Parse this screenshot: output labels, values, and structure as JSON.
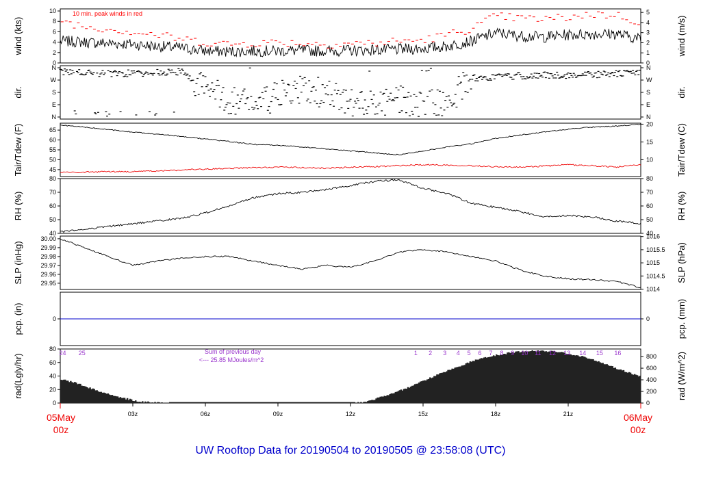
{
  "title": "UW Rooftop Data for 20190504  to  20190505 @ 23:58:08  (UTC)",
  "date_start": {
    "line1": "05May",
    "line2": "00z"
  },
  "date_end": {
    "line1": "06May",
    "line2": "00z"
  },
  "x_ticks": [
    "03z",
    "06z",
    "09z",
    "12z",
    "15z",
    "18z",
    "21z"
  ],
  "colors": {
    "peak": "#ff0000",
    "dew": "#ee0000",
    "precip": "#0000cc",
    "annot": "#9933cc",
    "title": "#0000cc"
  },
  "chart_data": [
    {
      "type": "line",
      "name": "wind",
      "ylabel_left": "wind (kts)",
      "ylabel_right": "wind (m/s)",
      "ylim": [
        0,
        10.4
      ],
      "yticks_left": [
        0,
        2,
        4,
        6,
        8,
        10
      ],
      "yticks_right": [
        0,
        1,
        2,
        3,
        4,
        5
      ],
      "annotation": "10 min. peak winds in red",
      "x_hours": [
        0,
        1,
        2,
        3,
        4,
        5,
        6,
        7,
        8,
        9,
        10,
        11,
        12,
        13,
        14,
        15,
        16,
        17,
        18,
        19,
        20,
        21,
        22,
        23,
        24
      ],
      "mean_kts": [
        4.2,
        4.0,
        3.8,
        3.6,
        3.2,
        2.9,
        2.3,
        2.2,
        2.3,
        2.3,
        2.4,
        2.3,
        2.4,
        2.5,
        2.6,
        2.8,
        3.2,
        4.2,
        5.8,
        5.2,
        5.0,
        5.4,
        5.6,
        5.6,
        4.6
      ],
      "peak_kts": [
        8.2,
        7.0,
        6.6,
        6.0,
        5.4,
        4.6,
        4.0,
        3.6,
        3.8,
        4.0,
        3.8,
        3.6,
        3.8,
        3.8,
        4.2,
        4.4,
        5.4,
        6.6,
        9.0,
        8.6,
        8.4,
        8.8,
        9.4,
        9.2,
        7.8
      ]
    },
    {
      "type": "scatter",
      "name": "direction",
      "ylabel_left": "dir.",
      "ylabel_right": "dir.",
      "yticks_left": [
        "N",
        "E",
        "S",
        "W",
        "N"
      ],
      "yticks_right": [
        "N",
        "E",
        "S",
        "W",
        "N"
      ],
      "ylim_deg": [
        0,
        360
      ],
      "x_hours": [
        0,
        1,
        2,
        3,
        4,
        5,
        6,
        7,
        8,
        9,
        10,
        11,
        12,
        13,
        14,
        15,
        16,
        17,
        18,
        19,
        20,
        21,
        22,
        23,
        24
      ],
      "dir_deg": [
        330,
        320,
        315,
        320,
        325,
        330,
        200,
        130,
        90,
        150,
        200,
        170,
        100,
        80,
        120,
        80,
        110,
        285,
        290,
        300,
        305,
        305,
        310,
        315,
        330
      ]
    },
    {
      "type": "line",
      "name": "temperature",
      "ylabel_left": "Tair/Tdew (F)",
      "ylabel_right": "Tair/Tdew (C)",
      "ylim": [
        41.5,
        68.5
      ],
      "yticks_left": [
        45,
        50,
        55,
        60,
        65
      ],
      "yticks_right": [
        10,
        15,
        20
      ],
      "x_hours": [
        0,
        1,
        2,
        3,
        4,
        5,
        6,
        7,
        8,
        9,
        10,
        11,
        12,
        13,
        14,
        15,
        16,
        17,
        18,
        19,
        20,
        21,
        22,
        23,
        24
      ],
      "tair_f": [
        67.5,
        66.5,
        65.2,
        64.0,
        63.0,
        61.8,
        60.5,
        59.2,
        57.8,
        57.3,
        56.5,
        55.5,
        54.5,
        53.5,
        52.5,
        54.5,
        56.5,
        58.0,
        60.8,
        62.5,
        64.0,
        65.5,
        66.5,
        67.0,
        68.0
      ],
      "tdew_f": [
        43.5,
        43.8,
        44.0,
        44.0,
        44.3,
        44.8,
        45.2,
        45.6,
        46.0,
        46.3,
        46.0,
        45.7,
        46.2,
        46.5,
        47.0,
        47.5,
        47.3,
        47.0,
        46.5,
        46.2,
        46.8,
        47.5,
        47.0,
        46.3,
        47.5
      ]
    },
    {
      "type": "line",
      "name": "humidity",
      "ylabel_left": "RH (%)",
      "ylabel_right": "RH (%)",
      "ylim": [
        40,
        80
      ],
      "yticks_left": [
        40,
        50,
        60,
        70,
        80
      ],
      "yticks_right": [
        40,
        50,
        60,
        70,
        80
      ],
      "x_hours": [
        0,
        1,
        2,
        3,
        4,
        5,
        6,
        7,
        8,
        9,
        10,
        11,
        12,
        13,
        14,
        15,
        16,
        17,
        18,
        19,
        20,
        21,
        22,
        23,
        24
      ],
      "rh_pct": [
        41,
        43,
        45,
        47,
        49,
        51,
        55,
        60,
        66,
        69,
        70,
        72,
        75,
        78,
        79,
        73,
        69,
        62,
        59,
        56,
        52,
        53,
        52,
        49,
        47
      ]
    },
    {
      "type": "line",
      "name": "pressure",
      "ylabel_left": "SLP (inHg)",
      "ylabel_right": "SLP (hPa)",
      "ylim": [
        29.943,
        30.003
      ],
      "yticks_left": [
        29.95,
        29.96,
        29.97,
        29.98,
        29.99,
        30.0
      ],
      "yticks_left_labels": [
        "29.95",
        "29.96",
        "29.97",
        "29.98",
        "29.99",
        "30.00"
      ],
      "yticks_right": [
        1014,
        1014.5,
        1015,
        1015.5,
        1016
      ],
      "x_hours": [
        0,
        1,
        2,
        3,
        4,
        5,
        6,
        7,
        8,
        9,
        10,
        11,
        12,
        13,
        14,
        15,
        16,
        17,
        18,
        19,
        20,
        21,
        22,
        23,
        24
      ],
      "slp_inhg": [
        30.0,
        29.99,
        29.98,
        29.97,
        29.975,
        29.978,
        29.98,
        29.98,
        29.975,
        29.97,
        29.966,
        29.97,
        29.968,
        29.975,
        29.985,
        29.988,
        29.985,
        29.98,
        29.975,
        29.965,
        29.958,
        29.955,
        29.954,
        29.952,
        29.945
      ]
    },
    {
      "type": "line",
      "name": "precipitation",
      "ylabel_left": "pcp. (in)",
      "ylabel_right": "pcp. (mm)",
      "ylim": [
        -1,
        1
      ],
      "yticks_left": [
        0
      ],
      "yticks_right": [
        0
      ],
      "x_hours": [
        0,
        24
      ],
      "pcp_in": [
        0,
        0
      ]
    },
    {
      "type": "area",
      "name": "radiation",
      "ylabel_left": "rad(Lgly/hr)",
      "ylabel_right": "rad (W/m^2)",
      "ylim": [
        0,
        80
      ],
      "yticks_left": [
        0,
        20,
        40,
        60,
        80
      ],
      "yticks_right": [
        0,
        200,
        400,
        600,
        800
      ],
      "annotation_line1": "Sum of previous day",
      "annotation_line2": "<--- 25.85 MJoules/m^2",
      "hour_labels": [
        {
          "x": 0.1,
          "text": "24"
        },
        {
          "x": 0.9,
          "text": "25"
        },
        {
          "x": 14.7,
          "text": "1"
        },
        {
          "x": 15.3,
          "text": "2"
        },
        {
          "x": 15.9,
          "text": "3"
        },
        {
          "x": 16.45,
          "text": "4"
        },
        {
          "x": 16.9,
          "text": "5"
        },
        {
          "x": 17.35,
          "text": "6"
        },
        {
          "x": 17.8,
          "text": "7"
        },
        {
          "x": 18.25,
          "text": "8"
        },
        {
          "x": 18.7,
          "text": "9"
        },
        {
          "x": 19.2,
          "text": "10"
        },
        {
          "x": 19.75,
          "text": "11"
        },
        {
          "x": 20.35,
          "text": "12"
        },
        {
          "x": 20.95,
          "text": "13"
        },
        {
          "x": 21.6,
          "text": "14"
        },
        {
          "x": 22.3,
          "text": "15"
        },
        {
          "x": 23.05,
          "text": "16"
        }
      ],
      "x_hours": [
        0,
        0.5,
        1,
        1.5,
        2,
        2.5,
        3,
        3.5,
        4,
        4.5,
        12.2,
        12.5,
        13,
        13.5,
        14,
        14.5,
        15,
        15.5,
        16,
        16.5,
        17,
        17.5,
        18,
        18.5,
        19,
        19.5,
        20,
        20.5,
        21,
        21.5,
        22,
        22.5,
        23,
        23.5,
        24
      ],
      "rad_lgly": [
        35,
        31,
        25,
        18,
        13,
        8,
        4,
        1.5,
        0.5,
        0,
        0,
        1,
        6,
        12,
        18,
        25,
        33,
        41,
        48,
        55,
        62,
        67,
        71,
        74,
        76,
        77,
        77,
        76,
        73,
        69,
        64,
        58,
        51,
        45,
        39
      ]
    }
  ]
}
